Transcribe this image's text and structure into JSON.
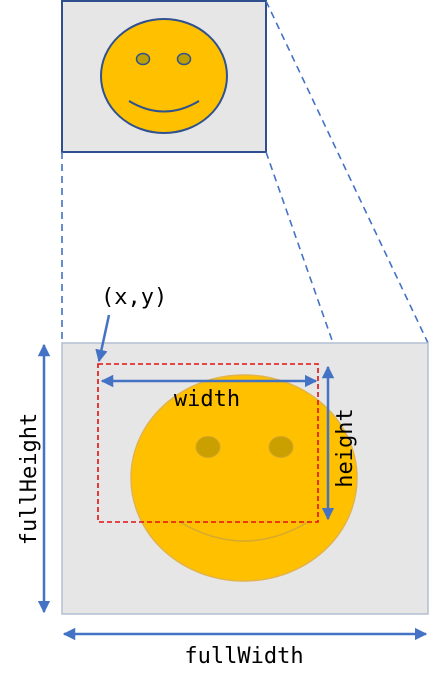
{
  "labels": {
    "origin": "(x,y)",
    "width": "width",
    "height": "height",
    "full_height": "fullHeight",
    "full_width": "fullWidth"
  },
  "colors": {
    "background_panel": "#e6e6e6",
    "panel_border_top": "#2f4f8f",
    "panel_border_bottom": "#b4bfd2",
    "smiley_fill": "#ffc000",
    "smiley_outline": "#2f528f",
    "smiley_eye": "#c0a000",
    "arrow": "#4472c4",
    "crop_box": "#e01010",
    "text": "#000000"
  },
  "icons": {
    "small_panel": "smiley-face-icon",
    "large_panel": "smiley-face-icon"
  }
}
